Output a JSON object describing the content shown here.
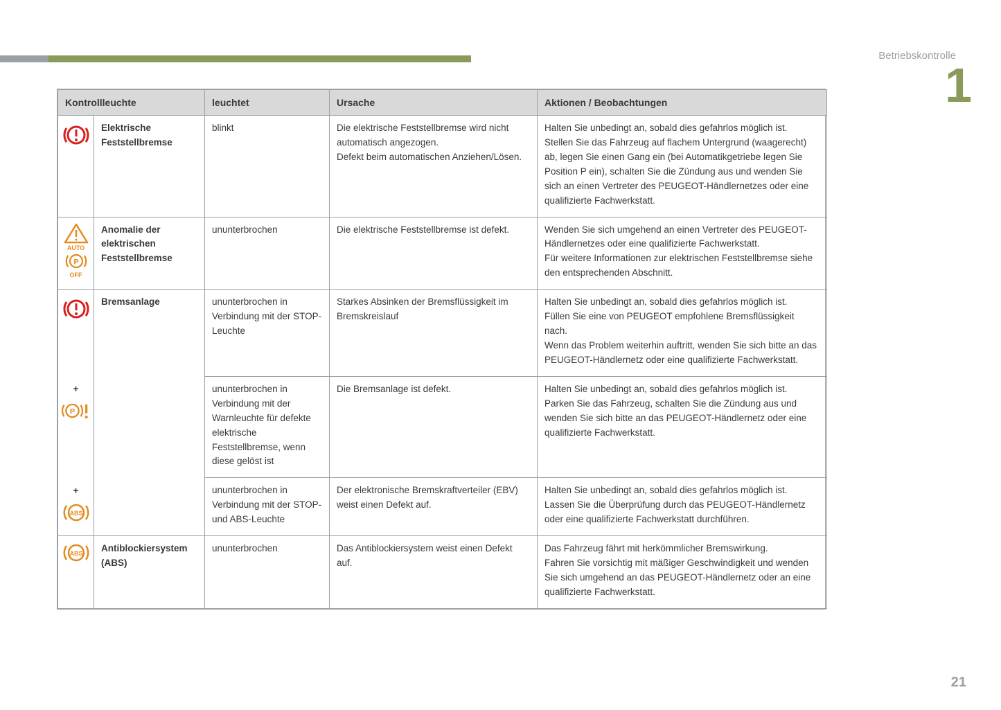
{
  "section_label": "Betriebskontrolle",
  "chapter_number": "1",
  "page_number": "21",
  "colors": {
    "accent": "#8a9a5b",
    "grey": "#9aa0a6",
    "header_bg": "#d9d9d9",
    "text": "#3a3a3a",
    "red": "#d9201e",
    "amber": "#e38b1f"
  },
  "columns": {
    "c1": "Kontrollleuchte",
    "c2": "leuchtet",
    "c3": "Ursache",
    "c4": "Aktionen / Beobachtungen"
  },
  "rows": {
    "r1": {
      "name": "Elektrische Feststellbremse",
      "state": "blinkt",
      "cause": "Die elektrische Feststellbremse wird nicht automatisch angezogen.\nDefekt beim automatischen Anziehen/Lösen.",
      "action": "Halten Sie unbedingt an, sobald dies gefahrlos möglich ist.\nStellen Sie das Fahrzeug auf flachem Untergrund (waagerecht) ab, legen Sie einen Gang ein (bei Automatikgetriebe legen Sie Position P ein), schalten Sie die Zündung aus und wenden Sie sich an einen Vertreter des PEUGEOT-Händlernetzes oder eine qualifizierte Fachwerkstatt."
    },
    "r2": {
      "name": "Anomalie der elektrischen Feststellbremse",
      "state": "ununterbrochen",
      "cause": "Die elektrische Feststellbremse ist defekt.",
      "action": "Wenden Sie sich umgehend an einen Vertreter des PEUGEOT-Händlernetzes oder eine qualifizierte Fachwerkstatt.\nFür weitere Informationen zur elektrischen Feststellbremse siehe den entsprechenden Abschnitt."
    },
    "r3": {
      "name": "Bremsanlage",
      "state": "ununterbrochen in Verbindung mit der STOP-Leuchte",
      "cause": "Starkes Absinken der Bremsflüssigkeit im Bremskreislauf",
      "action": "Halten Sie unbedingt an, sobald dies gefahrlos möglich ist.\nFüllen Sie eine von PEUGEOT empfohlene Bremsflüssigkeit nach.\nWenn das Problem weiterhin auftritt, wenden Sie sich bitte an das PEUGEOT-Händlernetz oder eine qualifizierte Fachwerkstatt."
    },
    "r4": {
      "plus": "+",
      "state": "ununterbrochen in Verbindung mit der Warnleuchte für defekte elektrische Feststellbremse, wenn diese gelöst ist",
      "cause": "Die Bremsanlage ist defekt.",
      "action": "Halten Sie unbedingt an, sobald dies gefahrlos möglich ist.\nParken Sie das Fahrzeug, schalten Sie die Zündung aus und wenden Sie sich bitte an das PEUGEOT-Händlernetz oder eine qualifizierte Fachwerkstatt."
    },
    "r5": {
      "plus": "+",
      "state": "ununterbrochen in Verbindung mit der STOP- und ABS-Leuchte",
      "cause": "Der elektronische Bremskraftverteiler (EBV) weist einen Defekt auf.",
      "action": "Halten Sie unbedingt an, sobald dies gefahrlos möglich ist.\nLassen Sie die Überprüfung durch das PEUGEOT-Händlernetz oder eine qualifizierte Fachwerkstatt durchführen."
    },
    "r6": {
      "name": "Antiblockiersystem (ABS)",
      "state": "ununterbrochen",
      "cause": "Das Antiblockiersystem weist einen Defekt auf.",
      "action": "Das Fahrzeug fährt mit herkömmlicher Bremswirkung.\nFahren Sie vorsichtig mit mäßiger Geschwindigkeit und wenden Sie sich umgehend an das PEUGEOT-Händlernetz oder an eine qualifizierte Fachwerkstatt."
    }
  }
}
